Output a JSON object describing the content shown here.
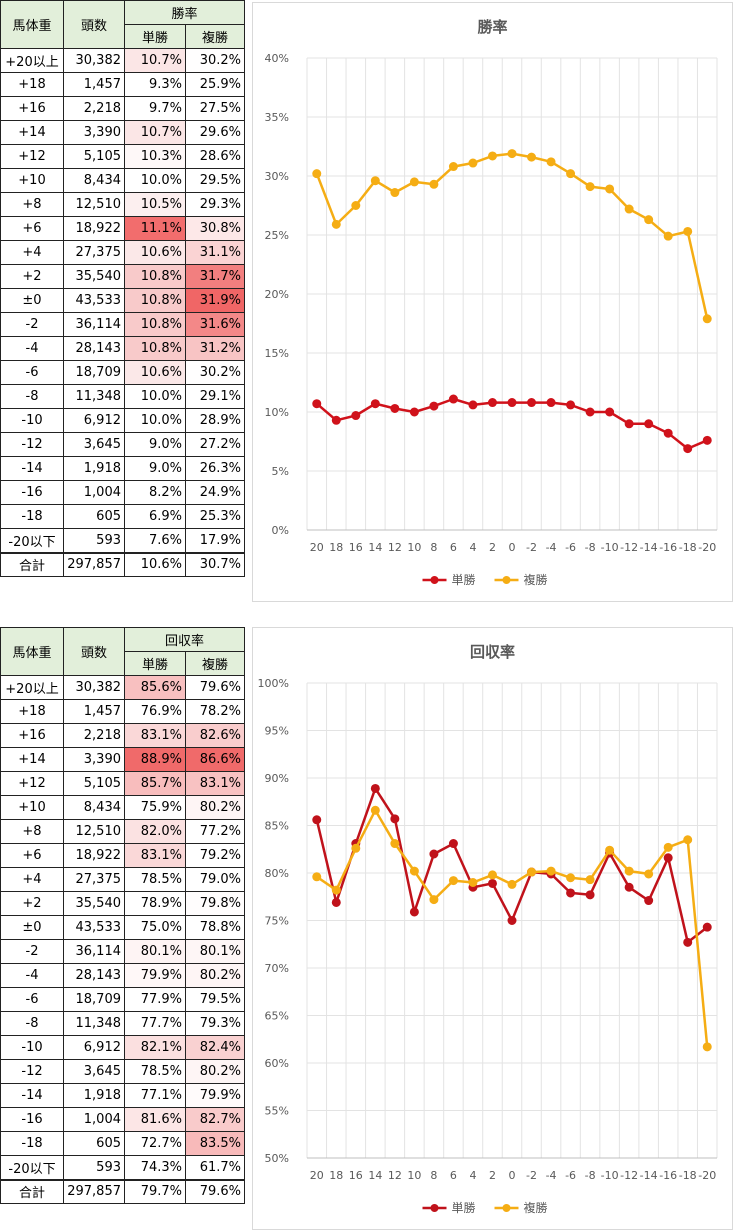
{
  "tables": [
    {
      "col_weight": "馬体重",
      "col_count": "頭数",
      "col_group": "勝率",
      "col_win": "単勝",
      "col_place": "複勝",
      "rows": [
        {
          "w": "+20以上",
          "n": "30,382",
          "win": "10.7%",
          "place": "30.2%",
          "win_bg": "#fbe6e6",
          "place_bg": "#fffefe"
        },
        {
          "w": "+18",
          "n": "1,457",
          "win": "9.3%",
          "place": "25.9%",
          "win_bg": "#ffffff",
          "place_bg": "#ffffff"
        },
        {
          "w": "+16",
          "n": "2,218",
          "win": "9.7%",
          "place": "27.5%",
          "win_bg": "#ffffff",
          "place_bg": "#ffffff"
        },
        {
          "w": "+14",
          "n": "3,390",
          "win": "10.7%",
          "place": "29.6%",
          "win_bg": "#fbe6e6",
          "place_bg": "#ffffff"
        },
        {
          "w": "+12",
          "n": "5,105",
          "win": "10.3%",
          "place": "28.6%",
          "win_bg": "#fef8f8",
          "place_bg": "#ffffff"
        },
        {
          "w": "+10",
          "n": "8,434",
          "win": "10.0%",
          "place": "29.5%",
          "win_bg": "#ffffff",
          "place_bg": "#ffffff"
        },
        {
          "w": "+8",
          "n": "12,510",
          "win": "10.5%",
          "place": "29.3%",
          "win_bg": "#fcefef",
          "place_bg": "#ffffff"
        },
        {
          "w": "+6",
          "n": "18,922",
          "win": "11.1%",
          "place": "30.8%",
          "win_bg": "#f26d6d",
          "place_bg": "#fde8e8"
        },
        {
          "w": "+4",
          "n": "27,375",
          "win": "10.6%",
          "place": "31.1%",
          "win_bg": "#fbe8e8",
          "place_bg": "#fad3d3"
        },
        {
          "w": "+2",
          "n": "35,540",
          "win": "10.8%",
          "place": "31.7%",
          "win_bg": "#f8caca",
          "place_bg": "#f27f7f"
        },
        {
          "w": "±0",
          "n": "43,533",
          "win": "10.8%",
          "place": "31.9%",
          "win_bg": "#f8caca",
          "place_bg": "#f06666"
        },
        {
          "w": "-2",
          "n": "36,114",
          "win": "10.8%",
          "place": "31.6%",
          "win_bg": "#f8caca",
          "place_bg": "#f38888"
        },
        {
          "w": "-4",
          "n": "28,143",
          "win": "10.8%",
          "place": "31.2%",
          "win_bg": "#f8caca",
          "place_bg": "#f8c4c4"
        },
        {
          "w": "-6",
          "n": "18,709",
          "win": "10.6%",
          "place": "30.2%",
          "win_bg": "#fbe8e8",
          "place_bg": "#fffefe"
        },
        {
          "w": "-8",
          "n": "11,348",
          "win": "10.0%",
          "place": "29.1%",
          "win_bg": "#ffffff",
          "place_bg": "#ffffff"
        },
        {
          "w": "-10",
          "n": "6,912",
          "win": "10.0%",
          "place": "28.9%",
          "win_bg": "#ffffff",
          "place_bg": "#ffffff"
        },
        {
          "w": "-12",
          "n": "3,645",
          "win": "9.0%",
          "place": "27.2%",
          "win_bg": "#ffffff",
          "place_bg": "#ffffff"
        },
        {
          "w": "-14",
          "n": "1,918",
          "win": "9.0%",
          "place": "26.3%",
          "win_bg": "#ffffff",
          "place_bg": "#ffffff"
        },
        {
          "w": "-16",
          "n": "1,004",
          "win": "8.2%",
          "place": "24.9%",
          "win_bg": "#ffffff",
          "place_bg": "#ffffff"
        },
        {
          "w": "-18",
          "n": "605",
          "win": "6.9%",
          "place": "25.3%",
          "win_bg": "#ffffff",
          "place_bg": "#ffffff"
        },
        {
          "w": "-20以下",
          "n": "593",
          "win": "7.6%",
          "place": "17.9%",
          "win_bg": "#ffffff",
          "place_bg": "#ffffff"
        }
      ],
      "total": {
        "w": "合計",
        "n": "297,857",
        "win": "10.6%",
        "place": "30.7%"
      }
    },
    {
      "col_weight": "馬体重",
      "col_count": "頭数",
      "col_group": "回収率",
      "col_win": "単勝",
      "col_place": "複勝",
      "rows": [
        {
          "w": "+20以上",
          "n": "30,382",
          "win": "85.6%",
          "place": "79.6%",
          "win_bg": "#f8c0c0",
          "place_bg": "#ffffff"
        },
        {
          "w": "+18",
          "n": "1,457",
          "win": "76.9%",
          "place": "78.2%",
          "win_bg": "#ffffff",
          "place_bg": "#ffffff"
        },
        {
          "w": "+16",
          "n": "2,218",
          "win": "83.1%",
          "place": "82.6%",
          "win_bg": "#fad8d8",
          "place_bg": "#f9cdcd"
        },
        {
          "w": "+14",
          "n": "3,390",
          "win": "88.9%",
          "place": "86.6%",
          "win_bg": "#f06a6a",
          "place_bg": "#f06a6a"
        },
        {
          "w": "+12",
          "n": "5,105",
          "win": "85.7%",
          "place": "83.1%",
          "win_bg": "#f8bdbd",
          "place_bg": "#f8c2c2"
        },
        {
          "w": "+10",
          "n": "8,434",
          "win": "75.9%",
          "place": "80.2%",
          "win_bg": "#ffffff",
          "place_bg": "#fef5f5"
        },
        {
          "w": "+8",
          "n": "12,510",
          "win": "82.0%",
          "place": "77.2%",
          "win_bg": "#fbe2e2",
          "place_bg": "#ffffff"
        },
        {
          "w": "+6",
          "n": "18,922",
          "win": "83.1%",
          "place": "79.2%",
          "win_bg": "#fad8d8",
          "place_bg": "#ffffff"
        },
        {
          "w": "+4",
          "n": "27,375",
          "win": "78.5%",
          "place": "79.0%",
          "win_bg": "#ffffff",
          "place_bg": "#ffffff"
        },
        {
          "w": "+2",
          "n": "35,540",
          "win": "78.9%",
          "place": "79.8%",
          "win_bg": "#ffffff",
          "place_bg": "#fffdfd"
        },
        {
          "w": "±0",
          "n": "43,533",
          "win": "75.0%",
          "place": "78.8%",
          "win_bg": "#ffffff",
          "place_bg": "#ffffff"
        },
        {
          "w": "-2",
          "n": "36,114",
          "win": "80.1%",
          "place": "80.1%",
          "win_bg": "#fef4f4",
          "place_bg": "#fef6f6"
        },
        {
          "w": "-4",
          "n": "28,143",
          "win": "79.9%",
          "place": "80.2%",
          "win_bg": "#fff8f8",
          "place_bg": "#fef5f5"
        },
        {
          "w": "-6",
          "n": "18,709",
          "win": "77.9%",
          "place": "79.5%",
          "win_bg": "#ffffff",
          "place_bg": "#ffffff"
        },
        {
          "w": "-8",
          "n": "11,348",
          "win": "77.7%",
          "place": "79.3%",
          "win_bg": "#ffffff",
          "place_bg": "#ffffff"
        },
        {
          "w": "-10",
          "n": "6,912",
          "win": "82.1%",
          "place": "82.4%",
          "win_bg": "#fbe0e0",
          "place_bg": "#f9d1d1"
        },
        {
          "w": "-12",
          "n": "3,645",
          "win": "78.5%",
          "place": "80.2%",
          "win_bg": "#ffffff",
          "place_bg": "#fef5f5"
        },
        {
          "w": "-14",
          "n": "1,918",
          "win": "77.1%",
          "place": "79.9%",
          "win_bg": "#ffffff",
          "place_bg": "#fffbfb"
        },
        {
          "w": "-16",
          "n": "1,004",
          "win": "81.6%",
          "place": "82.7%",
          "win_bg": "#fce6e6",
          "place_bg": "#f9cbcb"
        },
        {
          "w": "-18",
          "n": "605",
          "win": "72.7%",
          "place": "83.5%",
          "win_bg": "#ffffff",
          "place_bg": "#f8baba"
        },
        {
          "w": "-20以下",
          "n": "593",
          "win": "74.3%",
          "place": "61.7%",
          "win_bg": "#ffffff",
          "place_bg": "#ffffff"
        }
      ],
      "total": {
        "w": "合計",
        "n": "297,857",
        "win": "79.7%",
        "place": "79.6%"
      }
    }
  ],
  "chart_data": [
    {
      "type": "line",
      "title": "勝率",
      "xlabel": "",
      "ylabel": "",
      "categories": [
        "20",
        "18",
        "16",
        "14",
        "12",
        "10",
        "8",
        "6",
        "4",
        "2",
        "0",
        "-2",
        "-4",
        "-6",
        "-8",
        "-10",
        "-12",
        "-14",
        "-16",
        "-18",
        "-20"
      ],
      "series": [
        {
          "name": "単勝",
          "color": "#d0121b",
          "values": [
            10.7,
            9.3,
            9.7,
            10.7,
            10.3,
            10.0,
            10.5,
            11.1,
            10.6,
            10.8,
            10.8,
            10.8,
            10.8,
            10.6,
            10.0,
            10.0,
            9.0,
            9.0,
            8.2,
            6.9,
            7.6
          ]
        },
        {
          "name": "複勝",
          "color": "#f5ad14",
          "values": [
            30.2,
            25.9,
            27.5,
            29.6,
            28.6,
            29.5,
            29.3,
            30.8,
            31.1,
            31.7,
            31.9,
            31.6,
            31.2,
            30.2,
            29.1,
            28.9,
            27.2,
            26.3,
            24.9,
            25.3,
            17.9
          ]
        }
      ],
      "ylim": [
        0,
        40
      ],
      "yticks": [
        0,
        5,
        10,
        15,
        20,
        25,
        30,
        35,
        40
      ],
      "ytick_labels": [
        "0%",
        "5%",
        "10%",
        "15%",
        "20%",
        "25%",
        "30%",
        "35%",
        "40%"
      ],
      "grid": "vertical-and-horizontal",
      "legend": "bottom"
    },
    {
      "type": "line",
      "title": "回収率",
      "xlabel": "",
      "ylabel": "",
      "categories": [
        "20",
        "18",
        "16",
        "14",
        "12",
        "10",
        "8",
        "6",
        "4",
        "2",
        "0",
        "-2",
        "-4",
        "-6",
        "-8",
        "-10",
        "-12",
        "-14",
        "-16",
        "-18",
        "-20"
      ],
      "series": [
        {
          "name": "単勝",
          "color": "#c0121b",
          "values": [
            85.6,
            76.9,
            83.1,
            88.9,
            85.7,
            75.9,
            82.0,
            83.1,
            78.5,
            78.9,
            75.0,
            80.1,
            79.9,
            77.9,
            77.7,
            82.1,
            78.5,
            77.1,
            81.6,
            72.7,
            74.3
          ]
        },
        {
          "name": "複勝",
          "color": "#f5ad14",
          "values": [
            79.6,
            78.2,
            82.6,
            86.6,
            83.1,
            80.2,
            77.2,
            79.2,
            79.0,
            79.8,
            78.8,
            80.1,
            80.2,
            79.5,
            79.3,
            82.4,
            80.2,
            79.9,
            82.7,
            83.5,
            61.7
          ]
        }
      ],
      "ylim": [
        50,
        100
      ],
      "yticks": [
        50,
        55,
        60,
        65,
        70,
        75,
        80,
        85,
        90,
        95,
        100
      ],
      "ytick_labels": [
        "50%",
        "55%",
        "60%",
        "65%",
        "70%",
        "75%",
        "80%",
        "85%",
        "90%",
        "95%",
        "100%"
      ],
      "grid": "vertical-and-horizontal",
      "legend": "bottom"
    }
  ]
}
